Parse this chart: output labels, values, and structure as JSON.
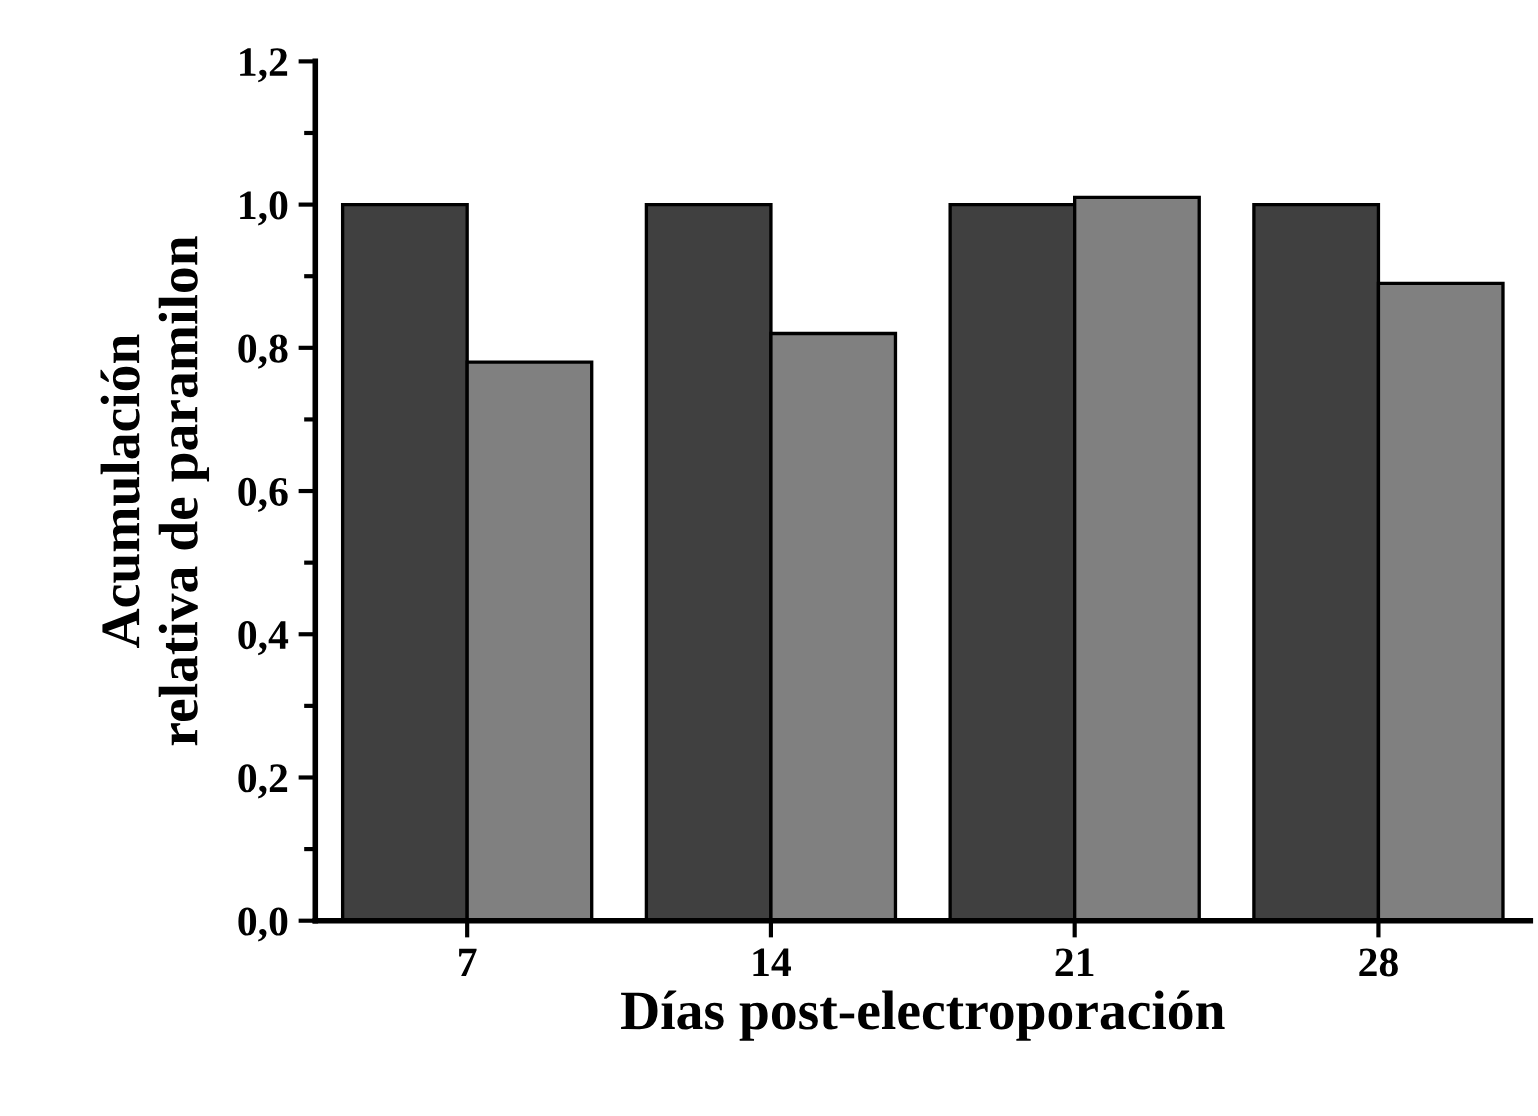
{
  "chart_data": {
    "type": "bar",
    "xlabel": "Días post-electroporación",
    "ylabel": "Acumulación\nrelativa de paramilon",
    "categories": [
      "7",
      "14",
      "21",
      "28"
    ],
    "series": [
      {
        "color": "#404040",
        "values": [
          1.0,
          1.0,
          1.0,
          1.0
        ]
      },
      {
        "color": "#808080",
        "values": [
          0.78,
          0.82,
          1.01,
          0.89
        ]
      }
    ],
    "ylim": [
      0,
      1.2
    ],
    "yticks": [
      {
        "value": 0,
        "label": "0,0"
      },
      {
        "value": 0.2,
        "label": "0,2"
      },
      {
        "value": 0.4,
        "label": "0,4"
      },
      {
        "value": 0.6,
        "label": "0,6"
      },
      {
        "value": 0.8,
        "label": "0,8"
      },
      {
        "value": 1.0,
        "label": "1,0"
      },
      {
        "value": 1.2,
        "label": "1,2"
      }
    ],
    "grid": false,
    "legend": false
  }
}
